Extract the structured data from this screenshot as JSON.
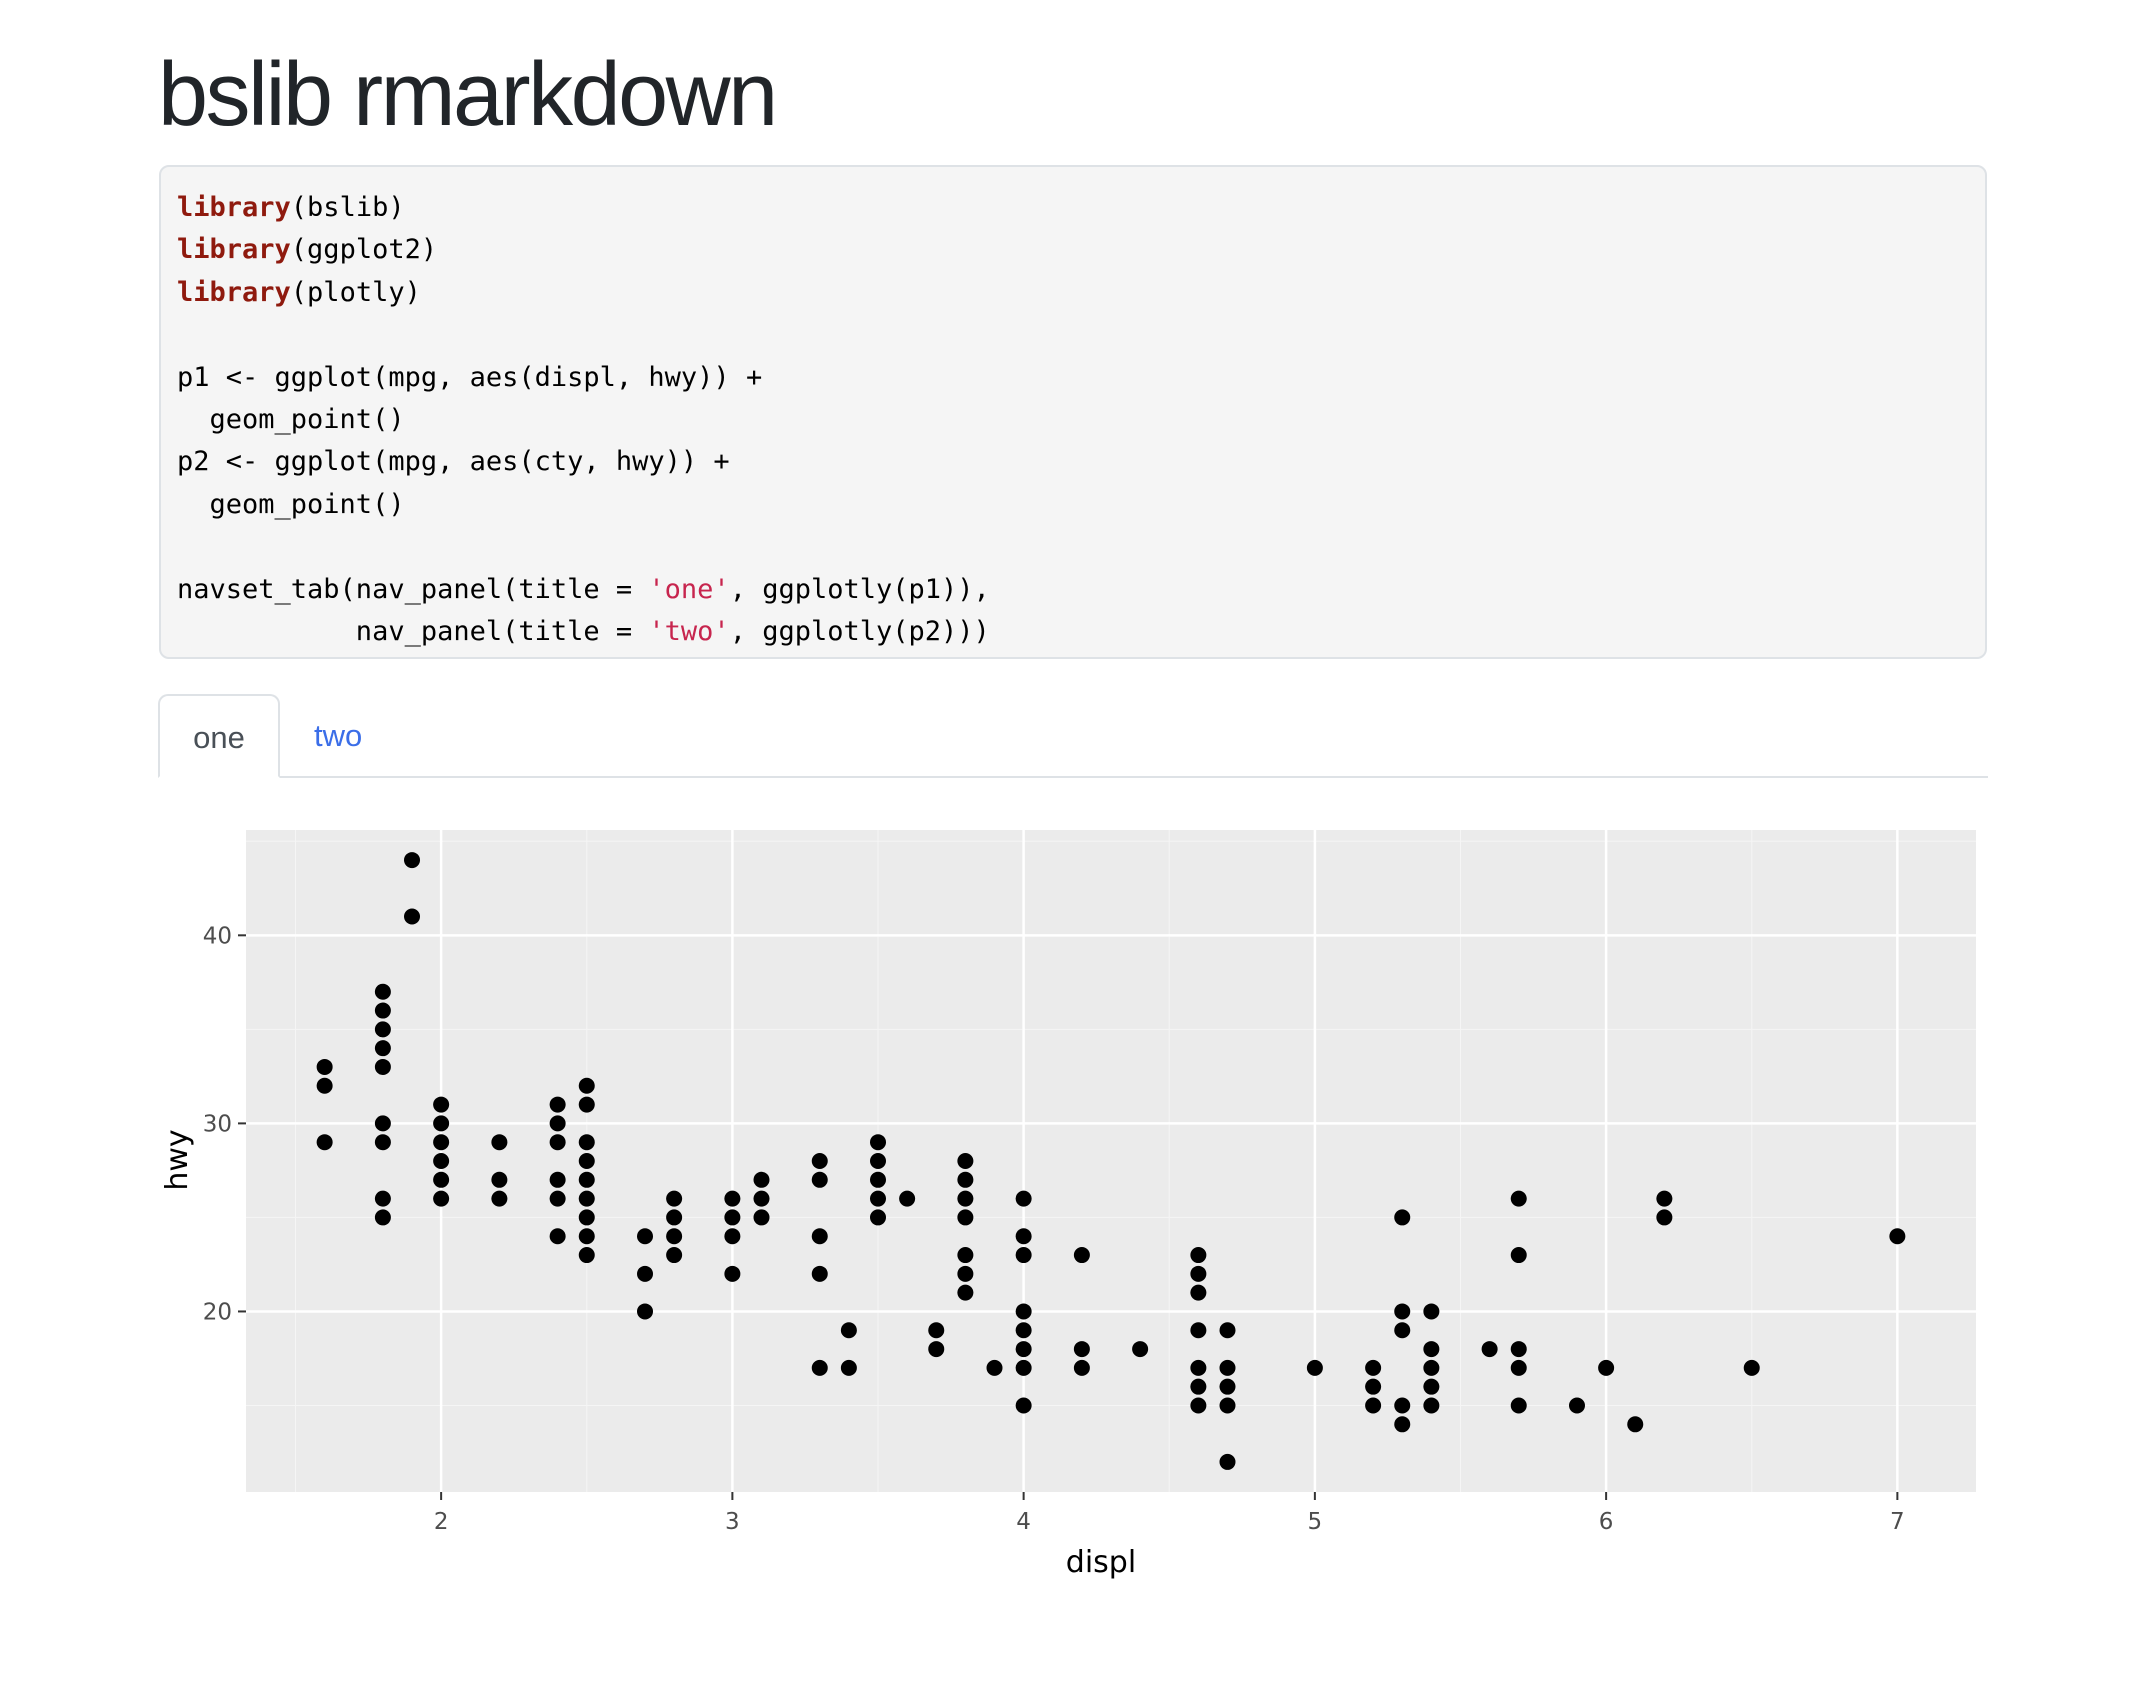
{
  "page": {
    "title": "bslib rmarkdown"
  },
  "code": {
    "lines": [
      [
        {
          "t": "library",
          "c": "kw"
        },
        {
          "t": "(bslib)"
        }
      ],
      [
        {
          "t": "library",
          "c": "kw"
        },
        {
          "t": "(ggplot2)"
        }
      ],
      [
        {
          "t": "library",
          "c": "kw"
        },
        {
          "t": "(plotly)"
        }
      ],
      [
        {
          "t": ""
        }
      ],
      [
        {
          "t": "p1 <- ggplot(mpg, aes(displ, hwy)) +"
        }
      ],
      [
        {
          "t": "  geom_point()"
        }
      ],
      [
        {
          "t": "p2 <- ggplot(mpg, aes(cty, hwy)) +"
        }
      ],
      [
        {
          "t": "  geom_point()"
        }
      ],
      [
        {
          "t": ""
        }
      ],
      [
        {
          "t": "navset_tab(nav_panel(title = "
        },
        {
          "t": "'one'",
          "c": "str"
        },
        {
          "t": ", ggplotly(p1)),"
        }
      ],
      [
        {
          "t": "           nav_panel(title = "
        },
        {
          "t": "'two'",
          "c": "str"
        },
        {
          "t": ", ggplotly(p2)))"
        }
      ]
    ]
  },
  "tabs": {
    "items": [
      {
        "label": "one",
        "active": true
      },
      {
        "label": "two",
        "active": false
      }
    ]
  },
  "colors": {
    "keyword": "#8f1a0e",
    "string": "#c7254e",
    "tab_active_text": "#495057",
    "tab_link": "#3b6ee8",
    "panel_bg": "#ebebeb",
    "grid": "#ffffff",
    "point": "#000000",
    "tick_label": "#4d4d4d"
  },
  "chart_data": {
    "type": "scatter",
    "title": "",
    "xlabel": "displ",
    "ylabel": "hwy",
    "xlim": [
      1.33,
      7.27
    ],
    "ylim": [
      10.4,
      45.6
    ],
    "xticks": [
      2,
      3,
      4,
      5,
      6,
      7
    ],
    "yticks": [
      20,
      30,
      40
    ],
    "grid": true,
    "legend": "none",
    "columns": [
      {
        "x": 1.6,
        "y": [
          33,
          32,
          29
        ]
      },
      {
        "x": 1.8,
        "y": [
          37,
          36,
          35,
          34,
          33,
          30,
          29,
          26,
          25
        ]
      },
      {
        "x": 1.9,
        "y": [
          44,
          41
        ]
      },
      {
        "x": 2.0,
        "y": [
          31,
          30,
          29,
          28,
          27,
          26
        ]
      },
      {
        "x": 2.2,
        "y": [
          29,
          27,
          26
        ]
      },
      {
        "x": 2.4,
        "y": [
          31,
          30,
          29,
          27,
          26,
          24
        ]
      },
      {
        "x": 2.5,
        "y": [
          32,
          31,
          29,
          28,
          27,
          26,
          25,
          24,
          23
        ]
      },
      {
        "x": 2.7,
        "y": [
          24,
          22,
          20
        ]
      },
      {
        "x": 2.8,
        "y": [
          26,
          25,
          24,
          23
        ]
      },
      {
        "x": 3.0,
        "y": [
          26,
          25,
          24,
          22
        ]
      },
      {
        "x": 3.1,
        "y": [
          27,
          26,
          25
        ]
      },
      {
        "x": 3.3,
        "y": [
          28,
          27,
          24,
          22,
          17
        ]
      },
      {
        "x": 3.4,
        "y": [
          19,
          17
        ]
      },
      {
        "x": 3.5,
        "y": [
          29,
          28,
          27,
          26,
          25
        ]
      },
      {
        "x": 3.6,
        "y": [
          26
        ]
      },
      {
        "x": 3.7,
        "y": [
          19,
          18
        ]
      },
      {
        "x": 3.8,
        "y": [
          28,
          27,
          26,
          25,
          23,
          22,
          21
        ]
      },
      {
        "x": 3.9,
        "y": [
          17
        ]
      },
      {
        "x": 4.0,
        "y": [
          26,
          24,
          23,
          20,
          19,
          18,
          17,
          15
        ]
      },
      {
        "x": 4.2,
        "y": [
          23,
          18,
          17
        ]
      },
      {
        "x": 4.4,
        "y": [
          18
        ]
      },
      {
        "x": 4.6,
        "y": [
          23,
          22,
          21,
          19,
          17,
          16,
          15
        ]
      },
      {
        "x": 4.7,
        "y": [
          19,
          17,
          16,
          15,
          12
        ]
      },
      {
        "x": 5.0,
        "y": [
          17
        ]
      },
      {
        "x": 5.2,
        "y": [
          17,
          16,
          15
        ]
      },
      {
        "x": 5.3,
        "y": [
          25,
          20,
          19,
          15,
          14
        ]
      },
      {
        "x": 5.4,
        "y": [
          20,
          18,
          17,
          16,
          15
        ]
      },
      {
        "x": 5.6,
        "y": [
          18
        ]
      },
      {
        "x": 5.7,
        "y": [
          26,
          23,
          18,
          17,
          15
        ]
      },
      {
        "x": 5.9,
        "y": [
          15
        ]
      },
      {
        "x": 6.0,
        "y": [
          17
        ]
      },
      {
        "x": 6.1,
        "y": [
          14
        ]
      },
      {
        "x": 6.2,
        "y": [
          26,
          25
        ]
      },
      {
        "x": 6.5,
        "y": [
          17
        ]
      },
      {
        "x": 7.0,
        "y": [
          24
        ]
      }
    ]
  }
}
